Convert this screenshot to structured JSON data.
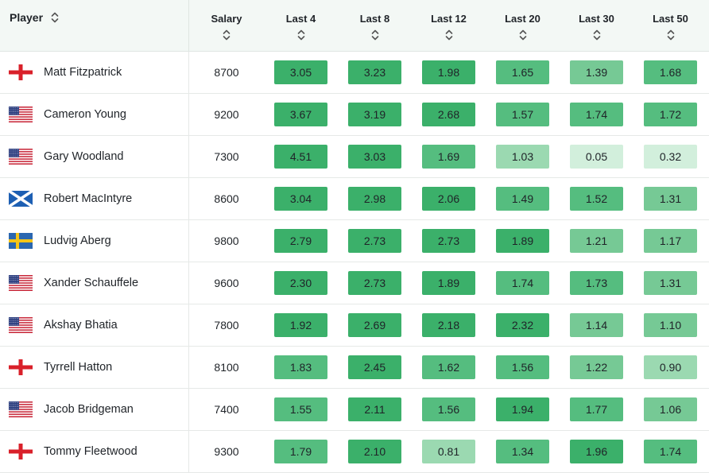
{
  "columns": {
    "player": "Player",
    "salary": "Salary",
    "last4": "Last 4",
    "last8": "Last 8",
    "last12": "Last 12",
    "last20": "Last 20",
    "last30": "Last 30",
    "last50": "Last 50"
  },
  "colors": {
    "tier1": "#3bb06a",
    "tier2": "#55bd7f",
    "tier3": "#76c995",
    "tier4": "#9bd9b1",
    "tier5": "#d2efdc",
    "header_bg": "#f3f8f5"
  },
  "rows": [
    {
      "name": "Matt Fitzpatrick",
      "flag": "england-flag-icon",
      "salary": "8700",
      "values": [
        "3.05",
        "3.23",
        "1.98",
        "1.65",
        "1.39",
        "1.68"
      ],
      "tiers": [
        1,
        1,
        1,
        2,
        3,
        2
      ]
    },
    {
      "name": "Cameron Young",
      "flag": "usa-flag-icon",
      "salary": "9200",
      "values": [
        "3.67",
        "3.19",
        "2.68",
        "1.57",
        "1.74",
        "1.72"
      ],
      "tiers": [
        1,
        1,
        1,
        2,
        2,
        2
      ]
    },
    {
      "name": "Gary Woodland",
      "flag": "usa-flag-icon",
      "salary": "7300",
      "values": [
        "4.51",
        "3.03",
        "1.69",
        "1.03",
        "0.05",
        "0.32"
      ],
      "tiers": [
        1,
        1,
        2,
        4,
        5,
        5
      ]
    },
    {
      "name": "Robert MacIntyre",
      "flag": "scotland-flag-icon",
      "salary": "8600",
      "values": [
        "3.04",
        "2.98",
        "2.06",
        "1.49",
        "1.52",
        "1.31"
      ],
      "tiers": [
        1,
        1,
        1,
        2,
        2,
        3
      ]
    },
    {
      "name": "Ludvig Aberg",
      "flag": "sweden-flag-icon",
      "salary": "9800",
      "values": [
        "2.79",
        "2.73",
        "2.73",
        "1.89",
        "1.21",
        "1.17"
      ],
      "tiers": [
        1,
        1,
        1,
        1,
        3,
        3
      ]
    },
    {
      "name": "Xander Schauffele",
      "flag": "usa-flag-icon",
      "salary": "9600",
      "values": [
        "2.30",
        "2.73",
        "1.89",
        "1.74",
        "1.73",
        "1.31"
      ],
      "tiers": [
        1,
        1,
        1,
        2,
        2,
        3
      ]
    },
    {
      "name": "Akshay Bhatia",
      "flag": "usa-flag-icon",
      "salary": "7800",
      "values": [
        "1.92",
        "2.69",
        "2.18",
        "2.32",
        "1.14",
        "1.10"
      ],
      "tiers": [
        1,
        1,
        1,
        1,
        3,
        3
      ]
    },
    {
      "name": "Tyrrell Hatton",
      "flag": "england-flag-icon",
      "salary": "8100",
      "values": [
        "1.83",
        "2.45",
        "1.62",
        "1.56",
        "1.22",
        "0.90"
      ],
      "tiers": [
        2,
        1,
        2,
        2,
        3,
        4
      ]
    },
    {
      "name": "Jacob Bridgeman",
      "flag": "usa-flag-icon",
      "salary": "7400",
      "values": [
        "1.55",
        "2.11",
        "1.56",
        "1.94",
        "1.77",
        "1.06"
      ],
      "tiers": [
        2,
        1,
        2,
        1,
        2,
        3
      ]
    },
    {
      "name": "Tommy Fleetwood",
      "flag": "england-flag-icon",
      "salary": "9300",
      "values": [
        "1.79",
        "2.10",
        "0.81",
        "1.34",
        "1.96",
        "1.74"
      ],
      "tiers": [
        2,
        1,
        4,
        2,
        1,
        2
      ]
    }
  ]
}
